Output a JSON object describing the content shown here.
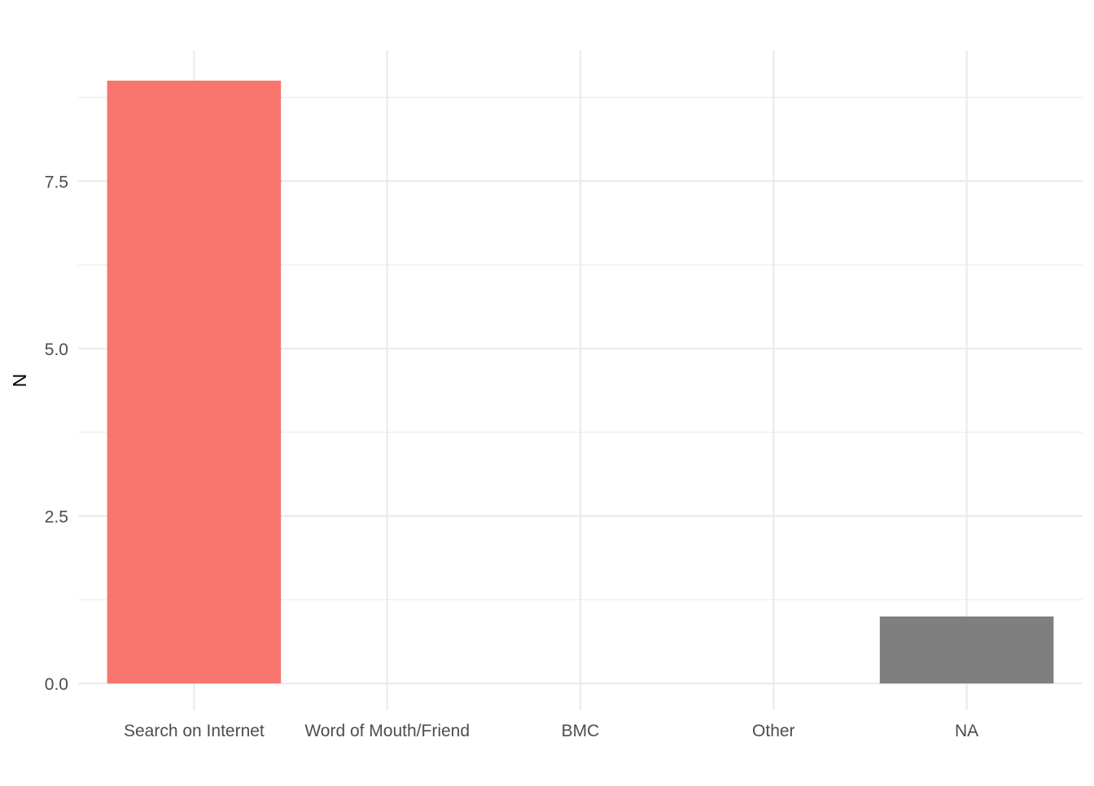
{
  "chart_data": {
    "type": "bar",
    "title": "",
    "xlabel": "",
    "ylabel": "N",
    "categories": [
      "Search on Internet",
      "Word of Mouth/Friend",
      "BMC",
      "Other",
      "NA"
    ],
    "values": [
      9,
      0,
      0,
      0,
      1
    ],
    "bar_colors": [
      "#F8766D",
      "#F8766D",
      "#F8766D",
      "#F8766D",
      "#7F7F7F"
    ],
    "ylim": [
      -0.4,
      9.45
    ],
    "y_ticks": [
      0,
      2.5,
      5,
      7.5
    ],
    "y_tick_labels": [
      "0.0",
      "2.5",
      "5.0",
      "7.5"
    ],
    "y_minor_ticks": [
      1.25,
      3.75,
      6.25,
      8.75
    ],
    "grid": true,
    "legend": "none",
    "colors": {
      "grid": "#EBEBEB",
      "axis_text": "#4D4D4D",
      "axis_title": "#000000",
      "background": "#FFFFFF"
    }
  }
}
